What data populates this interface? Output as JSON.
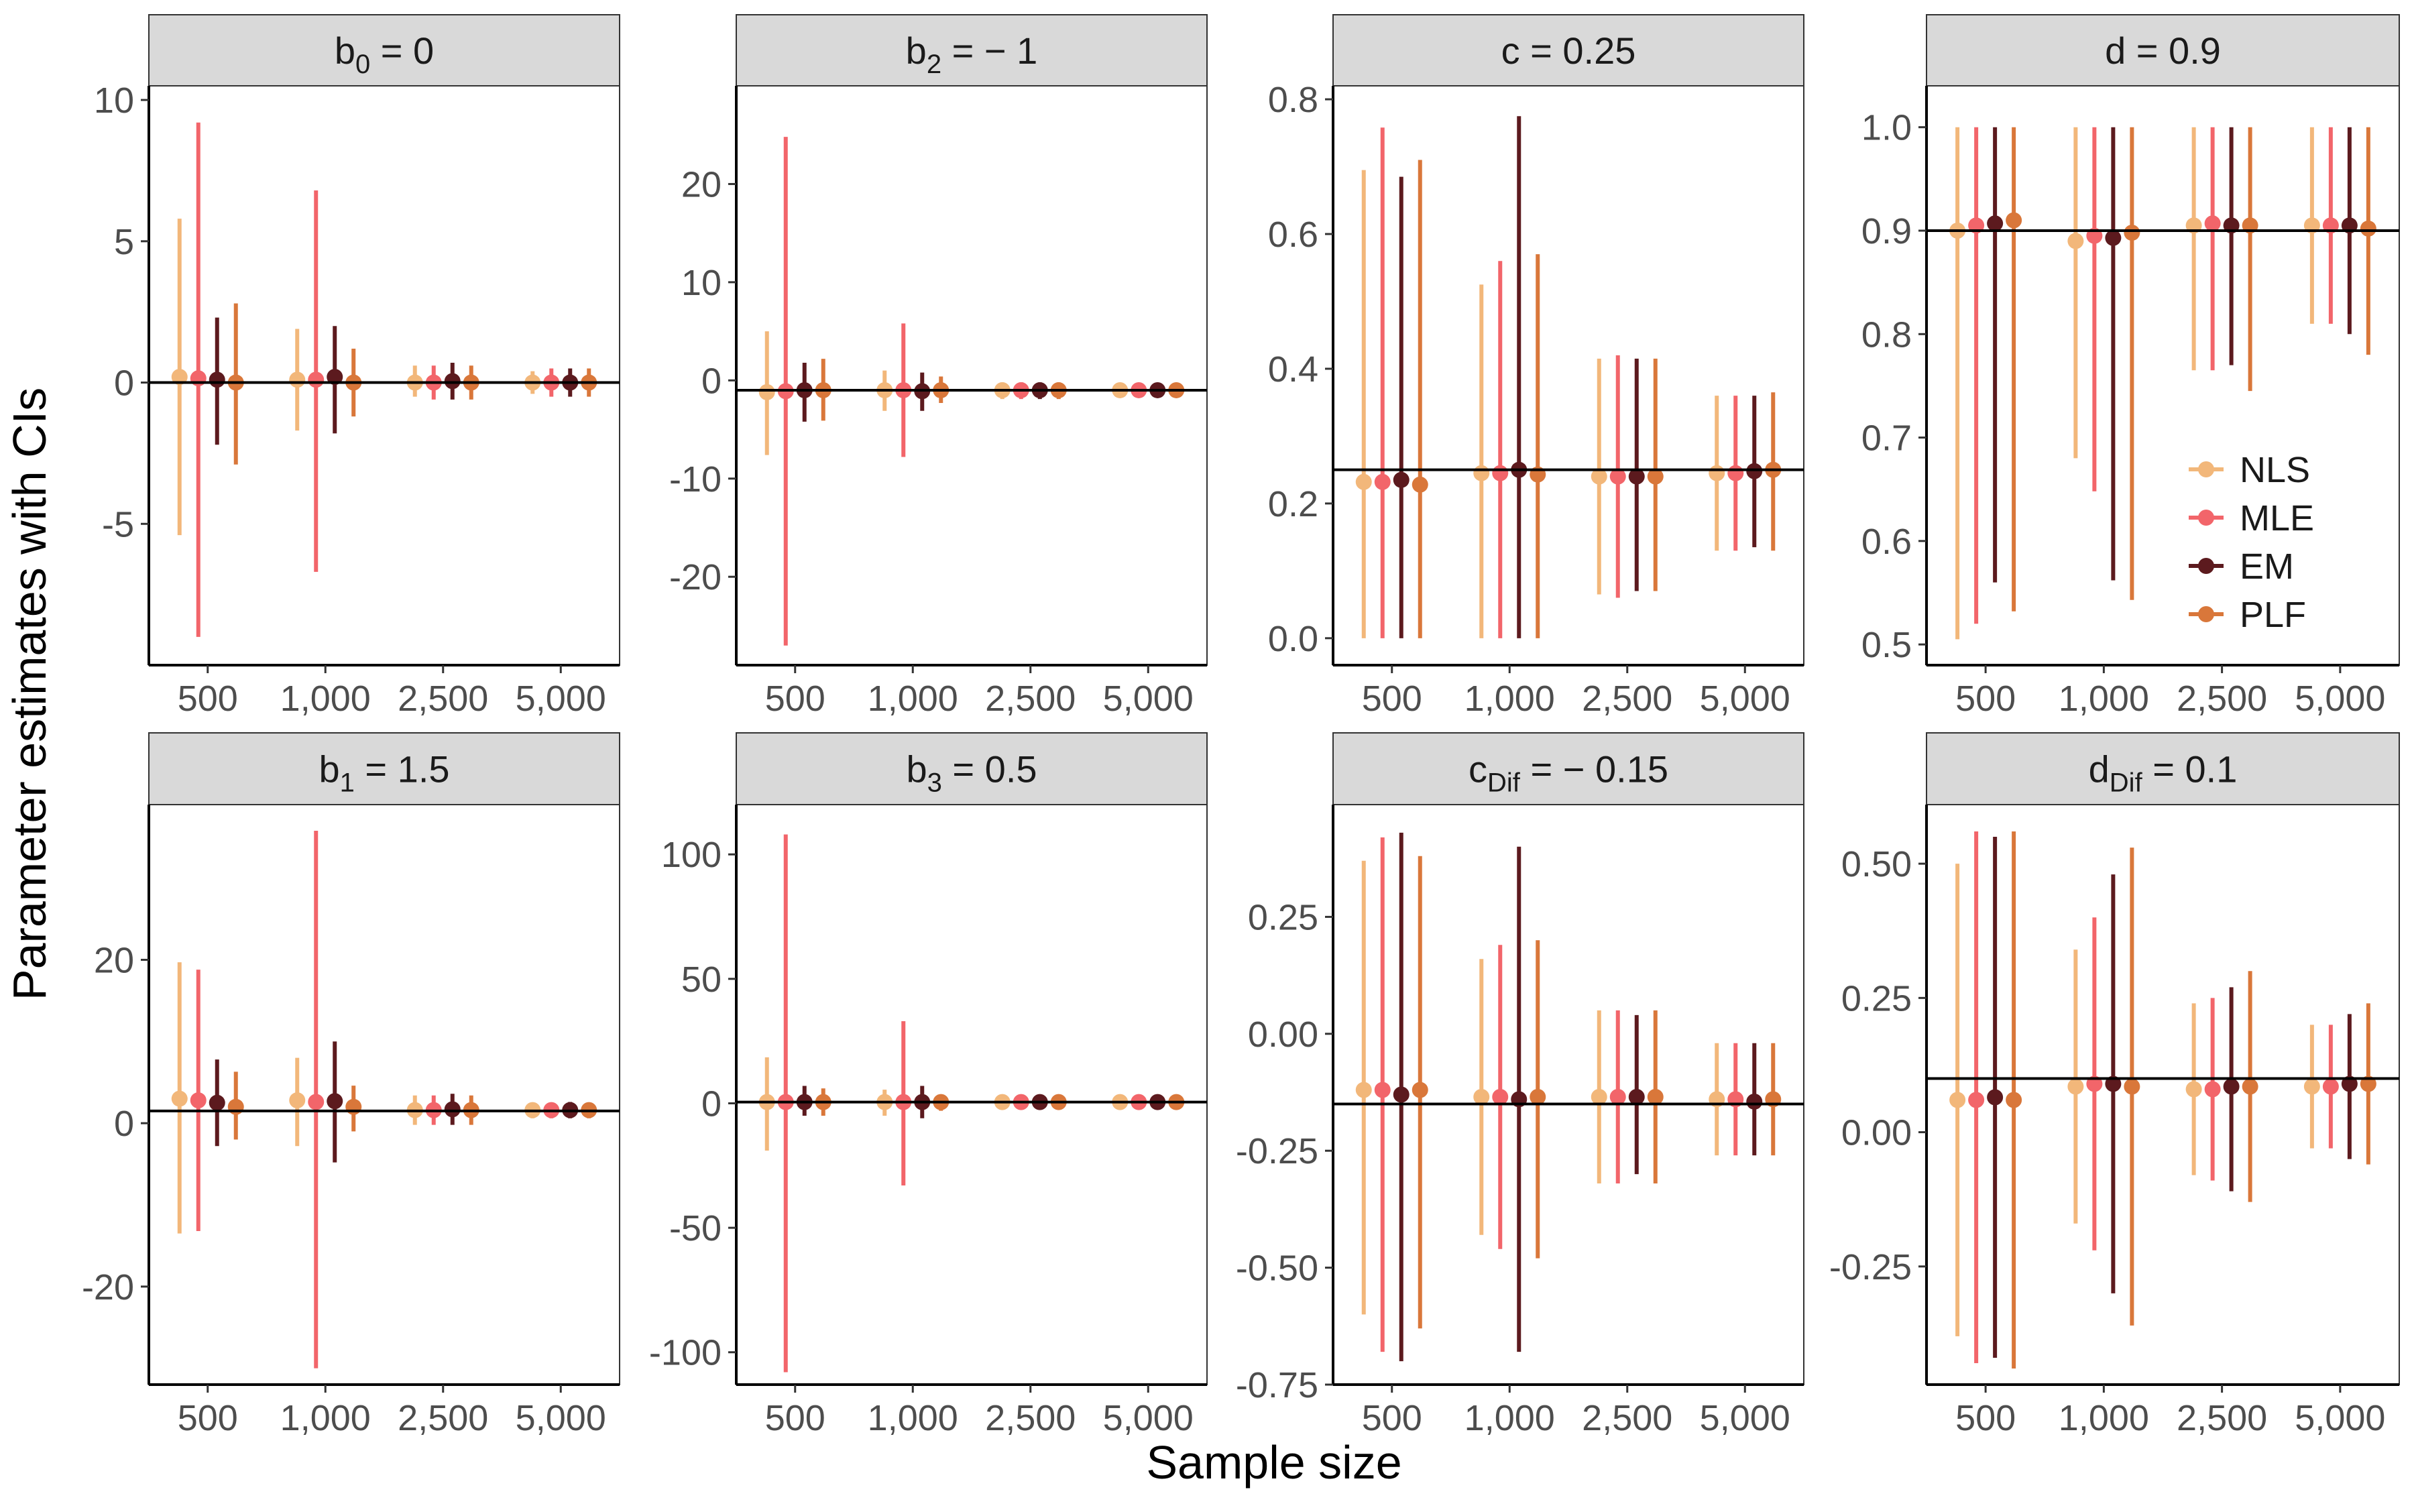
{
  "figure": {
    "xlabel": "Sample size",
    "ylabel": "Parameter estimates with CIs",
    "legend": {
      "placement": "inside-right of panel d",
      "items": [
        {
          "name": "NLS",
          "color": "#F2B77A"
        },
        {
          "name": "MLE",
          "color": "#F2656A"
        },
        {
          "name": "EM",
          "color": "#5C1A1E"
        },
        {
          "name": "PLF",
          "color": "#D9773A"
        }
      ]
    }
  },
  "chart_data": [
    {
      "type": "errorbar",
      "title": {
        "base": "b",
        "sub": "0",
        "rest": " = 0"
      },
      "true_value": 0,
      "ylim": [
        -10,
        10.5
      ],
      "yticks": [
        10,
        5,
        0,
        -5
      ],
      "yticklabels": [
        "10",
        "5",
        "0",
        "-5"
      ],
      "categories": [
        "500",
        "1,000",
        "2,500",
        "5,000"
      ],
      "series": [
        {
          "name": "NLS",
          "est": [
            0.2,
            0.1,
            0.0,
            0.0
          ],
          "lo": [
            -5.4,
            -1.7,
            -0.5,
            -0.4
          ],
          "hi": [
            5.8,
            1.9,
            0.6,
            0.4
          ]
        },
        {
          "name": "MLE",
          "est": [
            0.15,
            0.1,
            0.0,
            0.0
          ],
          "lo": [
            -9.0,
            -6.7,
            -0.6,
            -0.5
          ],
          "hi": [
            9.2,
            6.8,
            0.6,
            0.5
          ]
        },
        {
          "name": "EM",
          "est": [
            0.1,
            0.2,
            0.05,
            0.0
          ],
          "lo": [
            -2.2,
            -1.8,
            -0.6,
            -0.5
          ],
          "hi": [
            2.3,
            2.0,
            0.7,
            0.5
          ]
        },
        {
          "name": "PLF",
          "est": [
            0.0,
            0.0,
            0.0,
            0.0
          ],
          "lo": [
            -2.9,
            -1.2,
            -0.6,
            -0.5
          ],
          "hi": [
            2.8,
            1.2,
            0.6,
            0.5
          ]
        }
      ]
    },
    {
      "type": "errorbar",
      "title": {
        "base": "b",
        "sub": "2",
        "rest": " = − 1"
      },
      "true_value": -1,
      "ylim": [
        -29,
        30
      ],
      "yticks": [
        20,
        10,
        0,
        -10,
        -20
      ],
      "yticklabels": [
        "20",
        "10",
        "0",
        "-10",
        "-20"
      ],
      "categories": [
        "500",
        "1,000",
        "2,500",
        "5,000"
      ],
      "series": [
        {
          "name": "NLS",
          "est": [
            -1.2,
            -1.0,
            -1.0,
            -1.0
          ],
          "lo": [
            -7.6,
            -3.1,
            -1.9,
            -1.6
          ],
          "hi": [
            5.0,
            1.0,
            -0.2,
            -0.4
          ]
        },
        {
          "name": "MLE",
          "est": [
            -1.1,
            -1.0,
            -1.0,
            -1.0
          ],
          "lo": [
            -27.0,
            -7.8,
            -1.9,
            -1.6
          ],
          "hi": [
            24.8,
            5.8,
            -0.2,
            -0.4
          ]
        },
        {
          "name": "EM",
          "est": [
            -1.0,
            -1.1,
            -1.0,
            -1.0
          ],
          "lo": [
            -4.2,
            -3.1,
            -1.9,
            -1.6
          ],
          "hi": [
            1.8,
            0.8,
            -0.2,
            -0.4
          ]
        },
        {
          "name": "PLF",
          "est": [
            -1.0,
            -1.0,
            -1.0,
            -1.0
          ],
          "lo": [
            -4.1,
            -2.3,
            -1.9,
            -1.6
          ],
          "hi": [
            2.2,
            0.4,
            -0.2,
            -0.4
          ]
        }
      ]
    },
    {
      "type": "errorbar",
      "title": {
        "base": "c",
        "sub": "",
        "rest": " = 0.25"
      },
      "true_value": 0.25,
      "ylim": [
        -0.04,
        0.82
      ],
      "yticks": [
        0.8,
        0.6,
        0.4,
        0.2,
        0.0
      ],
      "yticklabels": [
        "0.8",
        "0.6",
        "0.4",
        "0.2",
        "0.0"
      ],
      "categories": [
        "500",
        "1,000",
        "2,500",
        "5,000"
      ],
      "series": [
        {
          "name": "NLS",
          "est": [
            0.232,
            0.245,
            0.24,
            0.245
          ],
          "lo": [
            0.0,
            0.0,
            0.065,
            0.13
          ],
          "hi": [
            0.695,
            0.525,
            0.415,
            0.36
          ]
        },
        {
          "name": "MLE",
          "est": [
            0.232,
            0.245,
            0.24,
            0.245
          ],
          "lo": [
            0.0,
            0.0,
            0.06,
            0.13
          ],
          "hi": [
            0.758,
            0.56,
            0.42,
            0.36
          ]
        },
        {
          "name": "EM",
          "est": [
            0.235,
            0.25,
            0.24,
            0.248
          ],
          "lo": [
            0.0,
            0.0,
            0.07,
            0.135
          ],
          "hi": [
            0.685,
            0.775,
            0.415,
            0.36
          ]
        },
        {
          "name": "PLF",
          "est": [
            0.228,
            0.243,
            0.24,
            0.25
          ],
          "lo": [
            0.0,
            0.0,
            0.07,
            0.13
          ],
          "hi": [
            0.71,
            0.57,
            0.415,
            0.365
          ]
        }
      ]
    },
    {
      "type": "errorbar",
      "title": {
        "base": "d",
        "sub": "",
        "rest": " = 0.9"
      },
      "true_value": 0.9,
      "ylim": [
        0.48,
        1.04
      ],
      "yticks": [
        1.0,
        0.9,
        0.8,
        0.7,
        0.6,
        0.5
      ],
      "yticklabels": [
        "1.0",
        "0.9",
        "0.8",
        "0.7",
        "0.6",
        "0.5"
      ],
      "categories": [
        "500",
        "1,000",
        "2,500",
        "5,000"
      ],
      "series": [
        {
          "name": "NLS",
          "est": [
            0.9,
            0.89,
            0.905,
            0.905
          ],
          "lo": [
            0.505,
            0.68,
            0.765,
            0.81
          ],
          "hi": [
            1.0,
            1.0,
            1.0,
            1.0
          ]
        },
        {
          "name": "MLE",
          "est": [
            0.905,
            0.895,
            0.907,
            0.905
          ],
          "lo": [
            0.52,
            0.648,
            0.765,
            0.81
          ],
          "hi": [
            1.0,
            1.0,
            1.0,
            1.0
          ]
        },
        {
          "name": "EM",
          "est": [
            0.907,
            0.893,
            0.905,
            0.905
          ],
          "lo": [
            0.56,
            0.562,
            0.77,
            0.8
          ],
          "hi": [
            1.0,
            1.0,
            1.0,
            1.0
          ]
        },
        {
          "name": "PLF",
          "est": [
            0.91,
            0.898,
            0.905,
            0.902
          ],
          "lo": [
            0.532,
            0.543,
            0.745,
            0.78
          ],
          "hi": [
            1.0,
            1.0,
            1.0,
            1.0
          ]
        }
      ]
    },
    {
      "type": "errorbar",
      "title": {
        "base": "b",
        "sub": "1",
        "rest": " = 1.5"
      },
      "true_value": 1.5,
      "ylim": [
        -32,
        39
      ],
      "yticks": [
        20,
        0,
        -20
      ],
      "yticklabels": [
        "20",
        "0",
        "-20"
      ],
      "categories": [
        "500",
        "1,000",
        "2,500",
        "5,000"
      ],
      "series": [
        {
          "name": "NLS",
          "est": [
            3.0,
            2.8,
            1.6,
            1.6
          ],
          "lo": [
            -13.5,
            -2.8,
            -0.2,
            0.6
          ],
          "hi": [
            19.7,
            8.0,
            3.4,
            2.5
          ]
        },
        {
          "name": "MLE",
          "est": [
            2.8,
            2.6,
            1.6,
            1.6
          ],
          "lo": [
            -13.2,
            -30.0,
            -0.2,
            0.6
          ],
          "hi": [
            18.8,
            35.8,
            3.4,
            2.5
          ]
        },
        {
          "name": "EM",
          "est": [
            2.5,
            2.7,
            1.7,
            1.6
          ],
          "lo": [
            -2.8,
            -4.8,
            -0.2,
            0.6
          ],
          "hi": [
            7.8,
            10.0,
            3.6,
            2.6
          ]
        },
        {
          "name": "PLF",
          "est": [
            2.0,
            2.0,
            1.6,
            1.6
          ],
          "lo": [
            -2.0,
            -1.0,
            -0.2,
            0.6
          ],
          "hi": [
            6.3,
            4.6,
            3.4,
            2.5
          ]
        }
      ]
    },
    {
      "type": "errorbar",
      "title": {
        "base": "b",
        "sub": "3",
        "rest": " = 0.5"
      },
      "true_value": 0.5,
      "ylim": [
        -113,
        120
      ],
      "yticks": [
        100,
        50,
        0,
        -50,
        -100
      ],
      "yticklabels": [
        "100",
        "50",
        "0",
        "-50",
        "-100"
      ],
      "categories": [
        "500",
        "1,000",
        "2,500",
        "5,000"
      ],
      "series": [
        {
          "name": "NLS",
          "est": [
            0.5,
            0.5,
            0.5,
            0.5
          ],
          "lo": [
            -19.0,
            -5.0,
            -1.5,
            -1.0
          ],
          "hi": [
            18.5,
            5.5,
            2.5,
            2.0
          ]
        },
        {
          "name": "MLE",
          "est": [
            0.5,
            0.5,
            0.5,
            0.5
          ],
          "lo": [
            -108.0,
            -33.0,
            -1.5,
            -1.0
          ],
          "hi": [
            108.0,
            33.0,
            2.5,
            2.0
          ]
        },
        {
          "name": "EM",
          "est": [
            0.5,
            0.5,
            0.5,
            0.5
          ],
          "lo": [
            -5.0,
            -6.0,
            -1.5,
            -1.0
          ],
          "hi": [
            7.0,
            7.0,
            2.5,
            2.0
          ]
        },
        {
          "name": "PLF",
          "est": [
            0.5,
            0.5,
            0.5,
            0.5
          ],
          "lo": [
            -5.0,
            -3.0,
            -1.5,
            -1.0
          ],
          "hi": [
            6.0,
            3.0,
            2.5,
            2.0
          ]
        }
      ]
    },
    {
      "type": "errorbar",
      "title": {
        "base": "c",
        "sub": "Dif",
        "rest": " = − 0.15"
      },
      "true_value": -0.15,
      "ylim": [
        -0.75,
        0.49
      ],
      "yticks": [
        0.25,
        0.0,
        -0.25,
        -0.5,
        -0.75
      ],
      "yticklabels": [
        "0.25",
        "0.00",
        "-0.25",
        "-0.50",
        "-0.75"
      ],
      "categories": [
        "500",
        "1,000",
        "2,500",
        "5,000"
      ],
      "series": [
        {
          "name": "NLS",
          "est": [
            -0.12,
            -0.135,
            -0.135,
            -0.14
          ],
          "lo": [
            -0.6,
            -0.43,
            -0.32,
            -0.26
          ],
          "hi": [
            0.37,
            0.16,
            0.05,
            -0.02
          ]
        },
        {
          "name": "MLE",
          "est": [
            -0.12,
            -0.135,
            -0.135,
            -0.14
          ],
          "lo": [
            -0.68,
            -0.46,
            -0.32,
            -0.26
          ],
          "hi": [
            0.42,
            0.19,
            0.05,
            -0.02
          ]
        },
        {
          "name": "EM",
          "est": [
            -0.13,
            -0.14,
            -0.135,
            -0.145
          ],
          "lo": [
            -0.7,
            -0.68,
            -0.3,
            -0.26
          ],
          "hi": [
            0.43,
            0.4,
            0.04,
            -0.02
          ]
        },
        {
          "name": "PLF",
          "est": [
            -0.12,
            -0.135,
            -0.135,
            -0.14
          ],
          "lo": [
            -0.63,
            -0.48,
            -0.32,
            -0.26
          ],
          "hi": [
            0.38,
            0.2,
            0.05,
            -0.02
          ]
        }
      ]
    },
    {
      "type": "errorbar",
      "title": {
        "base": "d",
        "sub": "Dif",
        "rest": " = 0.1"
      },
      "true_value": 0.1,
      "ylim": [
        -0.47,
        0.61
      ],
      "yticks": [
        0.5,
        0.25,
        0.0,
        -0.25
      ],
      "yticklabels": [
        "0.50",
        "0.25",
        "0.00",
        "-0.25"
      ],
      "categories": [
        "500",
        "1,000",
        "2,500",
        "5,000"
      ],
      "series": [
        {
          "name": "NLS",
          "est": [
            0.06,
            0.085,
            0.08,
            0.085
          ],
          "lo": [
            -0.38,
            -0.17,
            -0.08,
            -0.03
          ],
          "hi": [
            0.5,
            0.34,
            0.24,
            0.2
          ]
        },
        {
          "name": "MLE",
          "est": [
            0.06,
            0.09,
            0.08,
            0.085
          ],
          "lo": [
            -0.43,
            -0.22,
            -0.09,
            -0.03
          ],
          "hi": [
            0.56,
            0.4,
            0.25,
            0.2
          ]
        },
        {
          "name": "EM",
          "est": [
            0.065,
            0.09,
            0.085,
            0.09
          ],
          "lo": [
            -0.42,
            -0.3,
            -0.11,
            -0.05
          ],
          "hi": [
            0.55,
            0.48,
            0.27,
            0.22
          ]
        },
        {
          "name": "PLF",
          "est": [
            0.06,
            0.085,
            0.085,
            0.09
          ],
          "lo": [
            -0.44,
            -0.36,
            -0.13,
            -0.06
          ],
          "hi": [
            0.56,
            0.53,
            0.3,
            0.24
          ]
        }
      ]
    }
  ]
}
